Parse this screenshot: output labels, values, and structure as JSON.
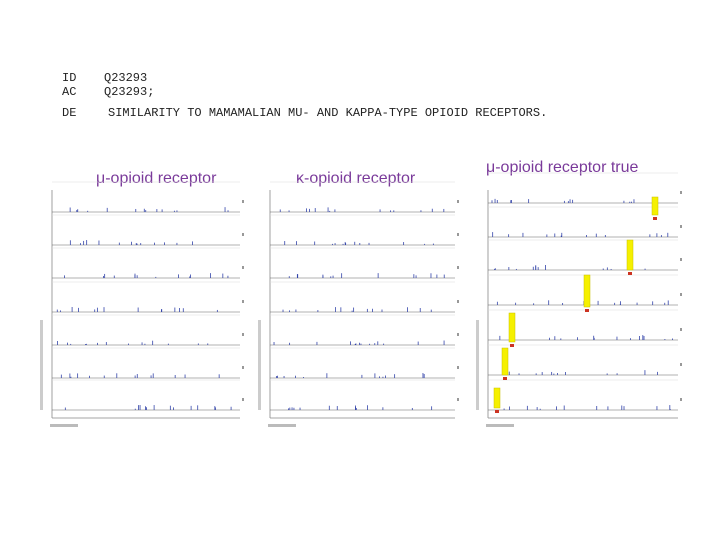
{
  "header": {
    "id_label": "ID",
    "id_value": "Q23293",
    "ac_label": "AC",
    "ac_value": "Q23293;",
    "de_label": "DE",
    "de_value": "SIMILARITY TO MAMAMALIAN MU- AND KAPPA-TYPE OPIOID RECEPTORS."
  },
  "panels": [
    {
      "title": "μ-opioid receptor"
    },
    {
      "title": "κ-opioid receptor"
    },
    {
      "title": "μ-opioid receptor true"
    }
  ]
}
